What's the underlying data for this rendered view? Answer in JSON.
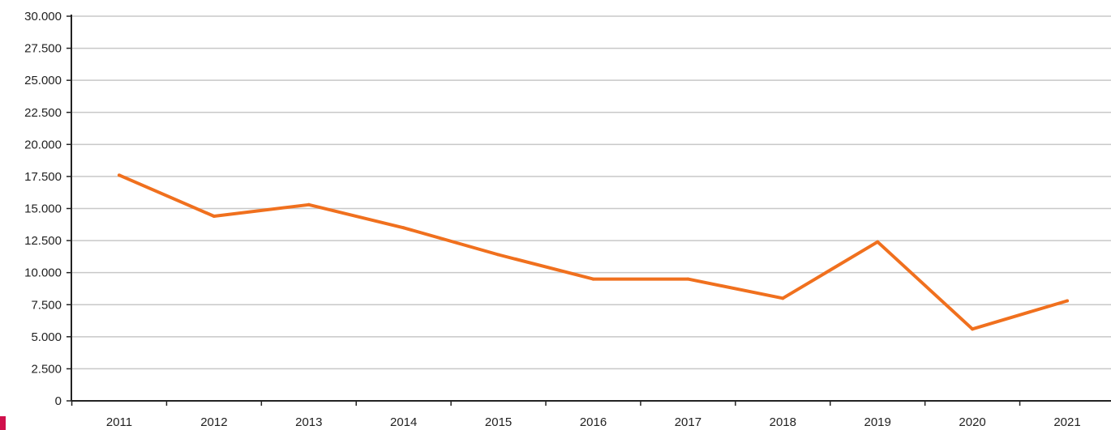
{
  "colors": {
    "series": "#f0701e",
    "grid": "#c8c8c8",
    "axis": "#222222",
    "corner_mark": "#d0104c"
  },
  "chart_data": {
    "type": "line",
    "title": "",
    "xlabel": "",
    "ylabel": "",
    "categories": [
      "2011",
      "2012",
      "2013",
      "2014",
      "2015",
      "2016",
      "2017",
      "2018",
      "2019",
      "2020",
      "2021"
    ],
    "series": [
      {
        "name": "",
        "values": [
          17600,
          14400,
          15300,
          13500,
          11400,
          9500,
          9500,
          8000,
          12400,
          5600,
          7800
        ]
      }
    ],
    "ylim": [
      0,
      30000
    ],
    "y_ticks": [
      0,
      2500,
      5000,
      7500,
      10000,
      12500,
      15000,
      17500,
      20000,
      22500,
      25000,
      27500,
      30000
    ],
    "y_tick_labels": [
      "0",
      "2.500",
      "5.000",
      "7.500",
      "10.000",
      "12.500",
      "15.000",
      "17.500",
      "20.000",
      "22.500",
      "25.000",
      "27.500",
      "30.000"
    ],
    "grid": true,
    "legend": "none"
  }
}
